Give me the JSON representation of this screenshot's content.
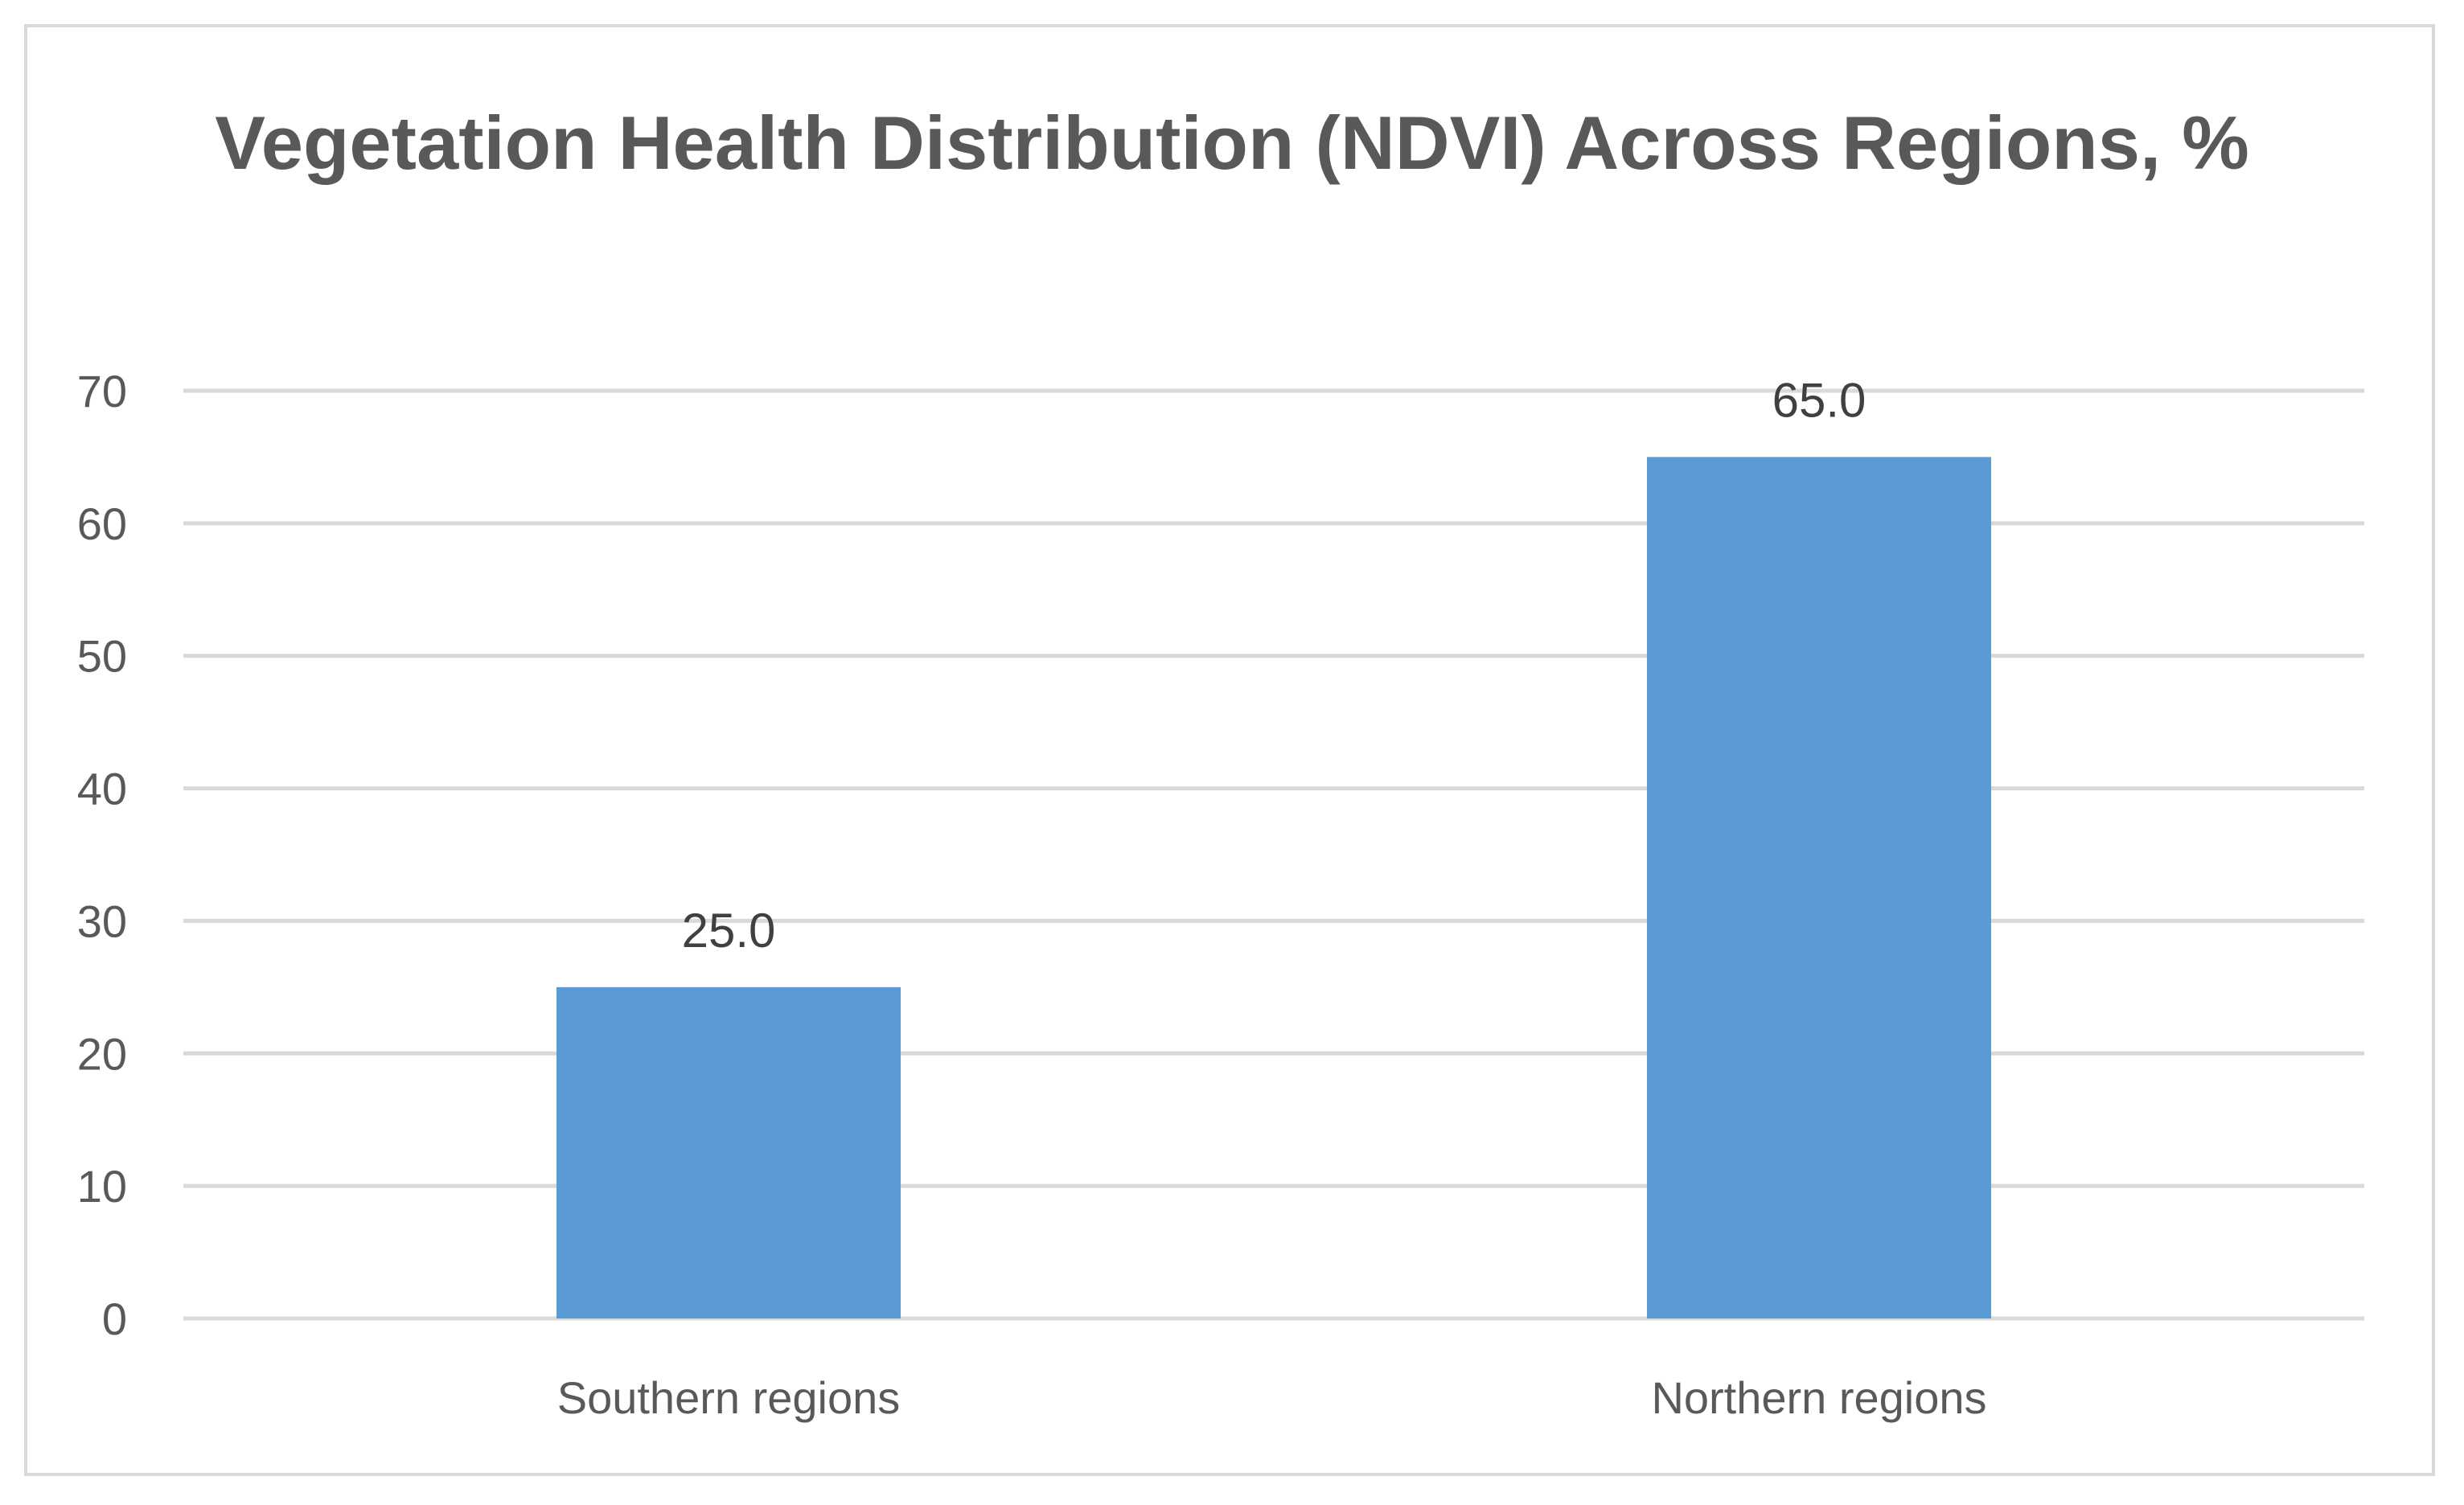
{
  "chart_data": {
    "type": "bar",
    "title": "Vegetation Health Distribution (NDVI) Across Regions, %",
    "categories": [
      "Southern regions",
      "Northern regions"
    ],
    "values": [
      25.0,
      65.0
    ],
    "data_labels": [
      "25.0",
      "65.0"
    ],
    "xlabel": "",
    "ylabel": "",
    "ylim": [
      0,
      70
    ],
    "y_ticks": [
      0,
      10,
      20,
      30,
      40,
      50,
      60,
      70
    ],
    "grid": true,
    "legend": "none",
    "colors": {
      "bar": "#5b9bd5",
      "gridline": "#d9d9d9",
      "axis_text": "#595959",
      "title_text": "#595959",
      "data_label_text": "#404040",
      "frame": "#d9d9d9"
    }
  }
}
